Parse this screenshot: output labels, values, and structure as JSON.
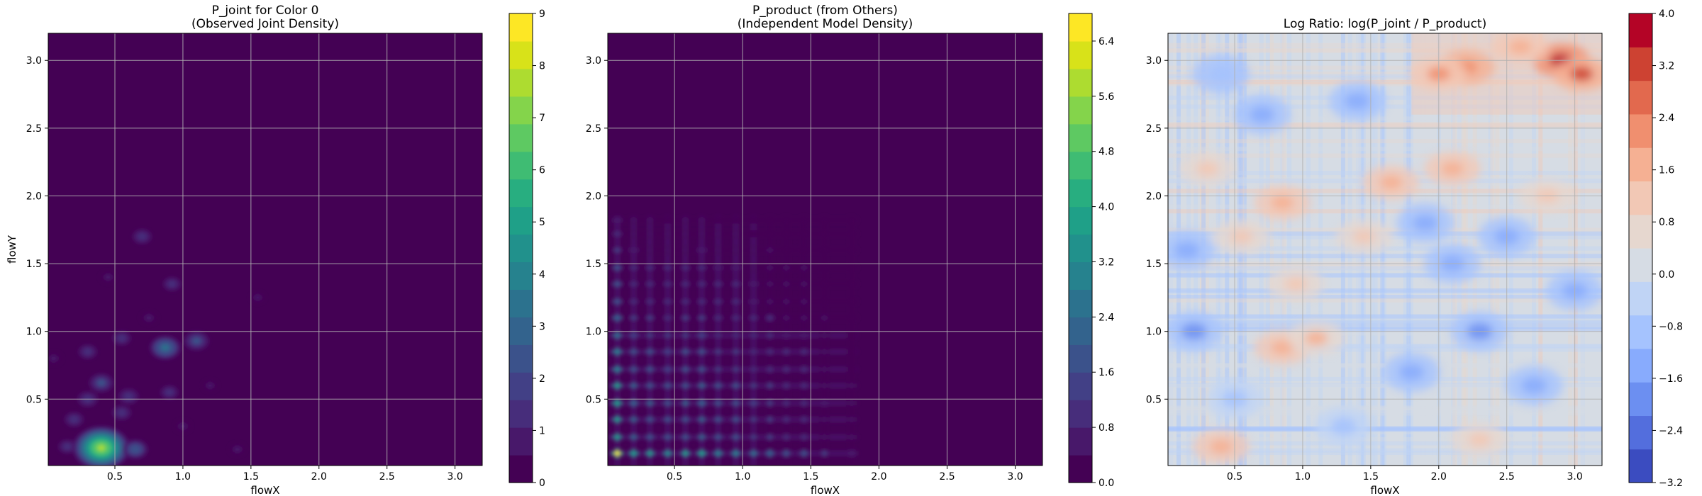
{
  "chart_data": [
    {
      "type": "heatmap",
      "title_lines": [
        "P_joint for Color 0",
        "(Observed Joint Density)"
      ],
      "xlabel": "flowX",
      "ylabel": "flowY",
      "xlim": [
        0.01,
        3.2
      ],
      "ylim": [
        0.01,
        3.2
      ],
      "xticks": [
        "0.5",
        "1.0",
        "1.5",
        "2.0",
        "2.5",
        "3.0"
      ],
      "yticks": [
        "0.5",
        "1.0",
        "1.5",
        "2.0",
        "2.5",
        "3.0"
      ],
      "grid": true,
      "colormap": "viridis",
      "colorbar": {
        "range": [
          0,
          9
        ],
        "ticks": [
          "0",
          "1",
          "2",
          "3",
          "4",
          "5",
          "6",
          "7",
          "8",
          "9"
        ],
        "colors": [
          "#440154",
          "#48186a",
          "#472d7b",
          "#424086",
          "#3b528b",
          "#33638d",
          "#2c728e",
          "#26828e",
          "#21918c",
          "#1fa088",
          "#28ae80",
          "#3fbc73",
          "#5ec962",
          "#84d44b",
          "#addc30",
          "#d8e219",
          "#fde725"
        ]
      },
      "blobs": [
        {
          "x": 0.4,
          "y": 0.14,
          "level": 7.8
        },
        {
          "x": 0.65,
          "y": 0.13,
          "level": 2.4
        },
        {
          "x": 0.87,
          "y": 0.88,
          "level": 3.4
        },
        {
          "x": 1.1,
          "y": 0.93,
          "level": 2.3
        },
        {
          "x": 0.4,
          "y": 0.62,
          "level": 2.2
        },
        {
          "x": 0.6,
          "y": 0.52,
          "level": 1.5
        },
        {
          "x": 0.3,
          "y": 0.5,
          "level": 1.5
        },
        {
          "x": 0.2,
          "y": 0.35,
          "level": 1.3
        },
        {
          "x": 0.55,
          "y": 0.4,
          "level": 1.3
        },
        {
          "x": 0.3,
          "y": 0.85,
          "level": 1.2
        },
        {
          "x": 0.9,
          "y": 0.55,
          "level": 1.1
        },
        {
          "x": 0.75,
          "y": 1.1,
          "level": 1.0
        },
        {
          "x": 0.55,
          "y": 0.95,
          "level": 1.2
        },
        {
          "x": 0.05,
          "y": 0.8,
          "level": 1.0
        },
        {
          "x": 0.7,
          "y": 1.7,
          "level": 1.3
        },
        {
          "x": 0.92,
          "y": 1.35,
          "level": 1.1
        },
        {
          "x": 0.45,
          "y": 1.4,
          "level": 0.8
        },
        {
          "x": 1.0,
          "y": 0.3,
          "level": 0.9
        },
        {
          "x": 1.4,
          "y": 0.13,
          "level": 0.9
        },
        {
          "x": 1.55,
          "y": 1.25,
          "level": 0.6
        },
        {
          "x": 0.15,
          "y": 0.15,
          "level": 1.1
        },
        {
          "x": 1.2,
          "y": 0.6,
          "level": 0.7
        }
      ]
    },
    {
      "type": "heatmap",
      "title_lines": [
        "P_product (from Others)",
        "(Independent Model Density)"
      ],
      "xlabel": "flowX",
      "ylabel": "",
      "xlim": [
        0.01,
        3.2
      ],
      "ylim": [
        0.01,
        3.2
      ],
      "xticks": [
        "0.5",
        "1.0",
        "1.5",
        "2.0",
        "2.5",
        "3.0"
      ],
      "yticks": [
        "0.5",
        "1.0",
        "1.5",
        "2.0",
        "2.5",
        "3.0"
      ],
      "grid": true,
      "colormap": "viridis",
      "colorbar": {
        "range": [
          0,
          6.8
        ],
        "ticks": [
          "0.0",
          "0.8",
          "1.6",
          "2.4",
          "3.2",
          "4.0",
          "4.8",
          "5.6",
          "6.4"
        ],
        "colors": [
          "#440154",
          "#48186a",
          "#472d7b",
          "#424086",
          "#3b528b",
          "#33638d",
          "#2c728e",
          "#26828e",
          "#21918c",
          "#1fa088",
          "#28ae80",
          "#3fbc73",
          "#5ec962",
          "#84d44b",
          "#addc30",
          "#d8e219",
          "#fde725"
        ]
      },
      "grid_points": {
        "x": [
          0.08,
          0.2,
          0.32,
          0.45,
          0.58,
          0.7,
          0.82,
          0.95,
          1.08,
          1.2,
          1.32,
          1.45,
          1.6,
          1.8
        ],
        "y": [
          0.1,
          0.22,
          0.35,
          0.47,
          0.6,
          0.72,
          0.85,
          0.97,
          1.1,
          1.22,
          1.35,
          1.47,
          1.6,
          1.72,
          1.82
        ],
        "x_weight": [
          1.0,
          0.6,
          0.55,
          0.5,
          0.55,
          0.6,
          0.45,
          0.45,
          0.4,
          0.35,
          0.3,
          0.28,
          0.2,
          0.12
        ],
        "y_weight": [
          1.0,
          0.55,
          0.55,
          0.6,
          0.55,
          0.45,
          0.45,
          0.4,
          0.35,
          0.3,
          0.3,
          0.25,
          0.2,
          0.15,
          0.12
        ],
        "peak_level": 6.6
      }
    },
    {
      "type": "heatmap",
      "title_lines": [
        "Log Ratio: log(P_joint / P_product)"
      ],
      "xlabel": "flowX",
      "ylabel": "",
      "xlim": [
        0.01,
        3.2
      ],
      "ylim": [
        0.01,
        3.2
      ],
      "xticks": [
        "0.5",
        "1.0",
        "1.5",
        "2.0",
        "2.5",
        "3.0"
      ],
      "yticks": [
        "0.5",
        "1.0",
        "1.5",
        "2.0",
        "2.5",
        "3.0"
      ],
      "grid": true,
      "colormap": "coolwarm",
      "colorbar": {
        "range": [
          -3.2,
          4.0
        ],
        "ticks": [
          "−3.2",
          "−2.4",
          "−1.6",
          "−0.8",
          "0.0",
          "0.8",
          "1.6",
          "2.4",
          "3.2",
          "4.0"
        ],
        "colors": [
          "#3b4cc0",
          "#536edd",
          "#6c8ff1",
          "#88abfd",
          "#a5c3fe",
          "#c0d4f5",
          "#d6dce4",
          "#e6d7cf",
          "#f2c8b5",
          "#f5b093",
          "#f08f6f",
          "#e2694e",
          "#cd4232",
          "#b40426"
        ]
      },
      "hotspots": [
        {
          "x": 2.9,
          "y": 3.0,
          "level": 3.6
        },
        {
          "x": 3.05,
          "y": 2.9,
          "level": 3.0
        },
        {
          "x": 2.2,
          "y": 2.95,
          "level": 2.4
        },
        {
          "x": 2.0,
          "y": 2.9,
          "level": 2.0
        },
        {
          "x": 2.6,
          "y": 3.1,
          "level": 1.8
        },
        {
          "x": 2.1,
          "y": 2.2,
          "level": 1.8
        },
        {
          "x": 1.65,
          "y": 2.1,
          "level": 1.6
        },
        {
          "x": 0.85,
          "y": 1.95,
          "level": 1.6
        },
        {
          "x": 0.55,
          "y": 1.7,
          "level": 1.4
        },
        {
          "x": 1.45,
          "y": 1.7,
          "level": 1.3
        },
        {
          "x": 0.85,
          "y": 0.88,
          "level": 1.7
        },
        {
          "x": 1.1,
          "y": 0.95,
          "level": 1.5
        },
        {
          "x": 0.4,
          "y": 0.15,
          "level": 1.6
        },
        {
          "x": 2.3,
          "y": 0.2,
          "level": 1.4
        },
        {
          "x": 0.3,
          "y": 2.2,
          "level": 1.0
        },
        {
          "x": 2.8,
          "y": 2.0,
          "level": 1.1
        },
        {
          "x": 0.95,
          "y": 1.35,
          "level": 1.0
        }
      ],
      "coldspots": [
        {
          "x": 0.2,
          "y": 1.0,
          "level": -1.8
        },
        {
          "x": 0.15,
          "y": 1.6,
          "level": -1.6
        },
        {
          "x": 2.3,
          "y": 1.0,
          "level": -1.7
        },
        {
          "x": 2.7,
          "y": 0.6,
          "level": -1.6
        },
        {
          "x": 1.8,
          "y": 0.7,
          "level": -1.5
        },
        {
          "x": 2.1,
          "y": 1.5,
          "level": -1.5
        },
        {
          "x": 2.5,
          "y": 1.7,
          "level": -1.4
        },
        {
          "x": 1.4,
          "y": 2.7,
          "level": -1.3
        },
        {
          "x": 0.7,
          "y": 2.6,
          "level": -1.2
        },
        {
          "x": 0.4,
          "y": 2.9,
          "level": -1.1
        },
        {
          "x": 1.9,
          "y": 1.8,
          "level": -1.2
        },
        {
          "x": 3.0,
          "y": 1.3,
          "level": -1.5
        },
        {
          "x": 0.5,
          "y": 0.5,
          "level": -1.0
        },
        {
          "x": 1.3,
          "y": 0.3,
          "level": -1.0
        }
      ]
    }
  ]
}
